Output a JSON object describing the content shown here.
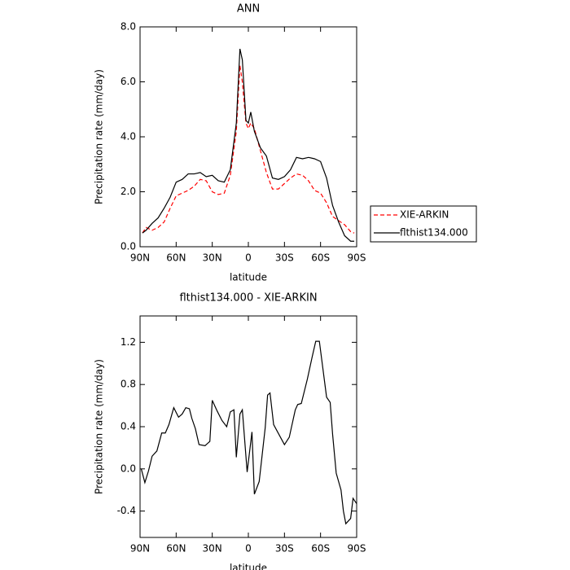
{
  "chart_data": [
    {
      "type": "line",
      "title": "ANN",
      "ylabel": "Precipitation rate (mm/day)",
      "xlabel": "latitude",
      "x": [
        88,
        85,
        80,
        75,
        70,
        65,
        60,
        55,
        50,
        45,
        40,
        35,
        30,
        25,
        20,
        15,
        10,
        7,
        5,
        2,
        0,
        -2,
        -5,
        -10,
        -15,
        -20,
        -25,
        -30,
        -35,
        -40,
        -45,
        -50,
        -55,
        -60,
        -65,
        -70,
        -75,
        -80,
        -85,
        -88
      ],
      "series": [
        {
          "name": "XIE-ARKIN",
          "color": "#ff0000",
          "style": "dashed",
          "values": [
            0.5,
            0.7,
            0.6,
            0.7,
            0.9,
            1.4,
            1.85,
            1.95,
            2.05,
            2.2,
            2.45,
            2.4,
            2.0,
            1.9,
            1.95,
            2.6,
            4.2,
            6.6,
            6.0,
            4.5,
            4.3,
            4.5,
            4.3,
            3.5,
            2.7,
            2.1,
            2.1,
            2.3,
            2.5,
            2.65,
            2.6,
            2.4,
            2.05,
            1.95,
            1.6,
            1.1,
            0.95,
            0.8,
            0.55,
            0.5
          ]
        },
        {
          "name": "flthist134.000",
          "color": "#000000",
          "style": "solid",
          "values": [
            0.5,
            0.6,
            0.85,
            1.05,
            1.4,
            1.8,
            2.35,
            2.45,
            2.65,
            2.65,
            2.7,
            2.55,
            2.6,
            2.4,
            2.35,
            2.8,
            4.5,
            7.2,
            6.8,
            4.6,
            4.5,
            4.9,
            4.2,
            3.6,
            3.3,
            2.5,
            2.45,
            2.55,
            2.8,
            3.25,
            3.2,
            3.25,
            3.2,
            3.1,
            2.5,
            1.5,
            0.9,
            0.4,
            0.2,
            0.2
          ]
        }
      ],
      "xlim": [
        90,
        -90
      ],
      "xticks": [
        {
          "value": 90,
          "label": "90N"
        },
        {
          "value": 60,
          "label": "60N"
        },
        {
          "value": 30,
          "label": "30N"
        },
        0,
        {
          "value": -30,
          "label": "30S"
        },
        {
          "value": -60,
          "label": "60S"
        },
        {
          "value": -90,
          "label": "90S"
        }
      ],
      "ylim": [
        0,
        8
      ],
      "yticks": [
        {
          "value": 0,
          "label": "0.0"
        },
        {
          "value": 2,
          "label": "2.0"
        },
        {
          "value": 4,
          "label": "4.0"
        },
        {
          "value": 6,
          "label": "6.0"
        },
        {
          "value": 8,
          "label": "8.0"
        }
      ],
      "legend": "right"
    },
    {
      "type": "line",
      "title": "flthist134.000 - XIE-ARKIN",
      "ylabel": "Precipitation rate (mm/day)",
      "xlabel": "latitude",
      "x": [
        89,
        86,
        83,
        80,
        76,
        72,
        69,
        66,
        62,
        58,
        55,
        52,
        49,
        47,
        44,
        41,
        36,
        32,
        30,
        26,
        22,
        18,
        15,
        12,
        10,
        7,
        5,
        1,
        -3,
        -5,
        -9,
        -14,
        -16,
        -18,
        -21,
        -30,
        -34,
        -39,
        -41,
        -44,
        -49,
        -53,
        -56,
        -59,
        -65,
        -68,
        -70,
        -73,
        -77,
        -79,
        -81,
        -85,
        -87,
        -90
      ],
      "series": [
        {
          "color": "#000000",
          "style": "solid",
          "values": [
            0.0,
            -0.13,
            -0.02,
            0.12,
            0.17,
            0.34,
            0.34,
            0.42,
            0.58,
            0.49,
            0.52,
            0.58,
            0.57,
            0.48,
            0.38,
            0.23,
            0.22,
            0.26,
            0.65,
            0.55,
            0.46,
            0.4,
            0.54,
            0.56,
            0.11,
            0.52,
            0.56,
            -0.03,
            0.35,
            -0.24,
            -0.12,
            0.39,
            0.7,
            0.72,
            0.42,
            0.23,
            0.3,
            0.56,
            0.61,
            0.62,
            0.85,
            1.06,
            1.21,
            1.21,
            0.68,
            0.63,
            0.33,
            -0.04,
            -0.2,
            -0.4,
            -0.52,
            -0.47,
            -0.28,
            -0.33
          ]
        }
      ],
      "xlim": [
        90,
        -90
      ],
      "xticks": [
        {
          "value": 90,
          "label": "90N"
        },
        {
          "value": 60,
          "label": "60N"
        },
        {
          "value": 30,
          "label": "30N"
        },
        0,
        {
          "value": -30,
          "label": "30S"
        },
        {
          "value": -60,
          "label": "60S"
        },
        {
          "value": -90,
          "label": "90S"
        }
      ],
      "ylim": [
        -0.65,
        1.45
      ],
      "yticks": [
        -0.4,
        {
          "value": 0,
          "label": "0.0"
        },
        0.4,
        0.8,
        1.2
      ]
    }
  ]
}
